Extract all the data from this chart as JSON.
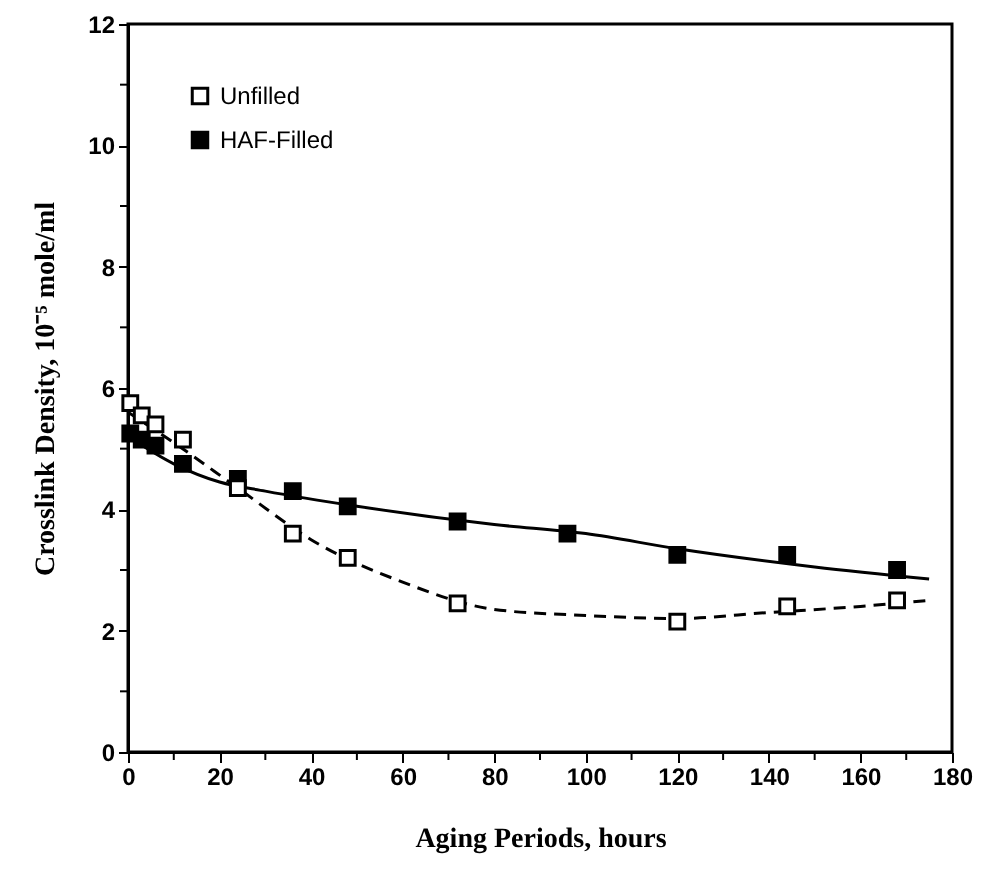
{
  "chart_data": {
    "type": "scatter",
    "xlabel": "Aging Periods, hours",
    "ylabel": "Crosslink Density, 10⁻⁵ mole/ml",
    "xlim": [
      0,
      180
    ],
    "ylim": [
      0,
      12
    ],
    "xticks": [
      0,
      {
        "value": 10,
        "label": null
      },
      20,
      {
        "value": 30,
        "label": null
      },
      40,
      {
        "value": 50,
        "label": null
      },
      60,
      {
        "value": 70,
        "label": null
      },
      80,
      {
        "value": 90,
        "label": null
      },
      100,
      {
        "value": 110,
        "label": null
      },
      120,
      {
        "value": 130,
        "label": null
      },
      140,
      {
        "value": 150,
        "label": null
      },
      160,
      {
        "value": 170,
        "label": null
      },
      180
    ],
    "yticks": [
      0,
      {
        "value": 1,
        "label": null
      },
      2,
      {
        "value": 3,
        "label": null
      },
      4,
      {
        "value": 5,
        "label": null
      },
      6,
      {
        "value": 7,
        "label": null
      },
      8,
      {
        "value": 9,
        "label": null
      },
      10,
      {
        "value": 11,
        "label": null
      },
      12
    ],
    "grid": false,
    "legend": "top left",
    "series": [
      {
        "name": "Unfilled",
        "marker": "square",
        "color": "#ffffff",
        "x": [
          0.5,
          3,
          6,
          12,
          24,
          36,
          48,
          72,
          120,
          144,
          168
        ],
        "values": [
          5.75,
          5.55,
          5.4,
          5.15,
          4.35,
          3.6,
          3.2,
          2.45,
          2.15,
          2.4,
          2.5
        ]
      },
      {
        "name": "HAF-Filled",
        "marker": "square",
        "color": "#000000",
        "x": [
          0.5,
          3,
          6,
          12,
          24,
          36,
          48,
          72,
          96,
          120,
          144,
          168
        ],
        "values": [
          5.25,
          5.15,
          5.05,
          4.75,
          4.5,
          4.3,
          4.05,
          3.8,
          3.6,
          3.25,
          3.25,
          3.0
        ]
      },
      {
        "type": "line",
        "line_style": "dashed",
        "color": "#000000",
        "x": [
          0,
          10,
          24,
          40,
          60,
          80,
          100,
          120,
          140,
          160,
          175
        ],
        "values": [
          5.6,
          5.1,
          4.35,
          3.5,
          2.8,
          2.35,
          2.25,
          2.2,
          2.3,
          2.4,
          2.5
        ]
      },
      {
        "type": "line",
        "line_style": "solid",
        "color": "#000000",
        "x": [
          0,
          10,
          20,
          30,
          50,
          80,
          100,
          120,
          150,
          175
        ],
        "values": [
          5.2,
          4.75,
          4.45,
          4.3,
          4.05,
          3.75,
          3.6,
          3.35,
          3.05,
          2.85
        ]
      }
    ]
  }
}
